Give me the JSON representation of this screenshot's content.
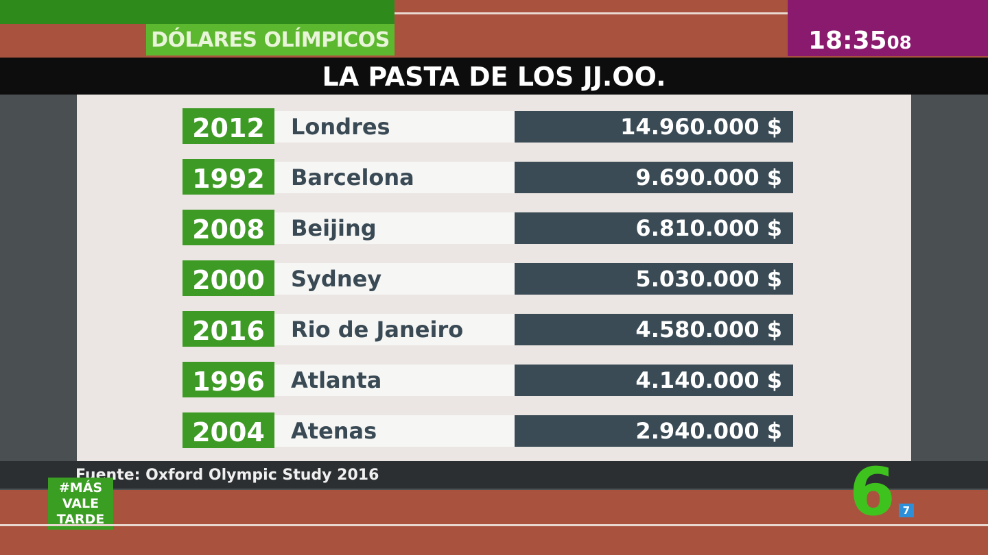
{
  "header": {
    "section": "DÓLARES OLÍMPICOS",
    "clock": "18:35",
    "clock_seconds": "08",
    "title": "LA PASTA DE LOS JJ.OO."
  },
  "table": {
    "rows": [
      [
        "2012",
        "Londres",
        "14.960.000 $"
      ],
      [
        "1992",
        "Barcelona",
        "9.690.000 $"
      ],
      [
        "2008",
        "Beijing",
        "6.810.000 $"
      ],
      [
        "2000",
        "Sydney",
        "5.030.000 $"
      ],
      [
        "2016",
        "Rio de Janeiro",
        "4.580.000 $"
      ],
      [
        "1996",
        "Atlanta",
        "4.140.000 $"
      ],
      [
        "2004",
        "Atenas",
        "2.940.000 $"
      ]
    ]
  },
  "footer": {
    "source": "Fuente: Oxford Olympic Study 2016",
    "badge": [
      "#MÁS",
      "VALE",
      "TARDE"
    ],
    "logo": "6",
    "logo_sub": "7"
  }
}
